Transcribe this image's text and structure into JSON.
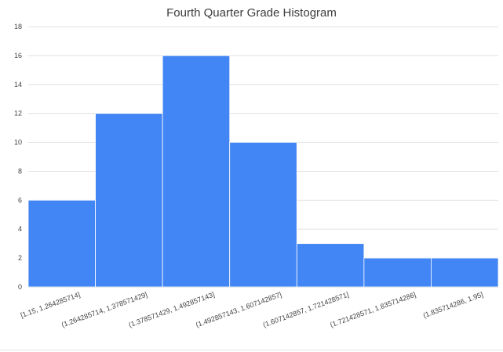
{
  "chart_data": {
    "type": "bar",
    "title": "Fourth Quarter Grade Histogram",
    "xlabel": "",
    "ylabel": "",
    "categories": [
      "[1.15, 1.264285714]",
      "(1.264285714, 1.378571429]",
      "(1.378571429, 1.492857143]",
      "(1.492857143, 1.607142857]",
      "(1.607142857, 1.721428571]",
      "(1.721428571, 1.835714286]",
      "(1.835714286, 1.95]"
    ],
    "values": [
      6,
      12,
      16,
      10,
      3,
      2,
      2
    ],
    "ylim": [
      0,
      18
    ],
    "yticks": [
      "0",
      "2",
      "4",
      "6",
      "8",
      "10",
      "12",
      "14",
      "16",
      "18"
    ],
    "grid": true,
    "legend": "none",
    "bar_color": "#4285f4"
  }
}
